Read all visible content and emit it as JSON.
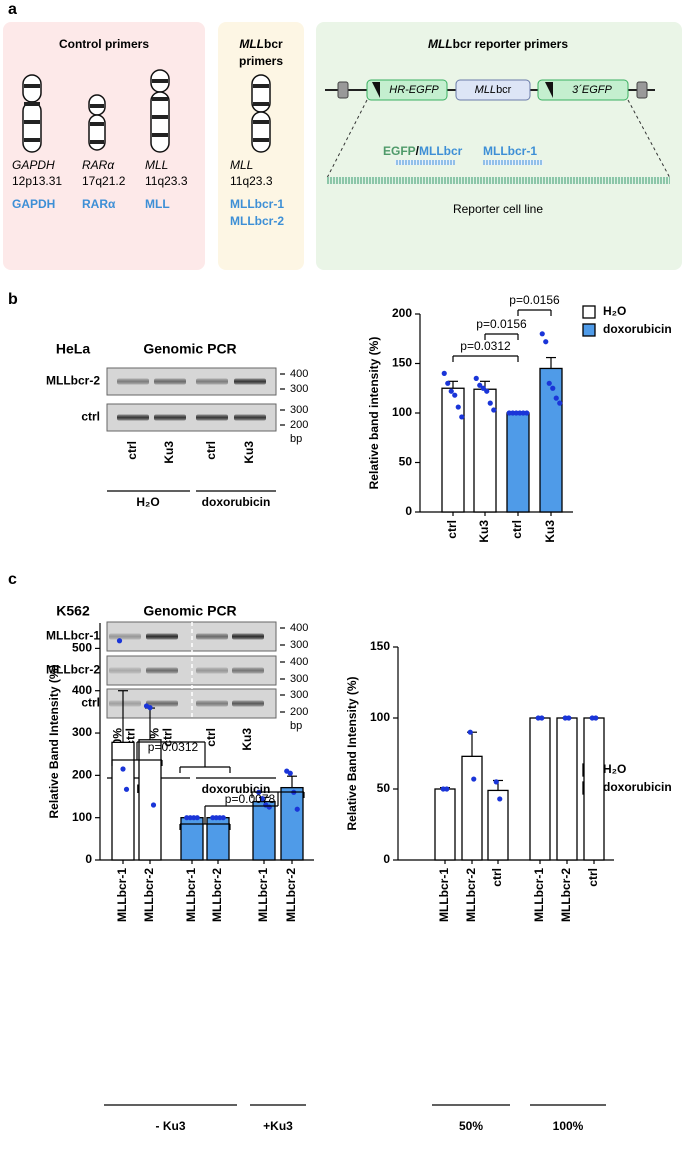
{
  "panel_a": {
    "label": "a",
    "control": {
      "title": "Control primers",
      "genes": [
        {
          "gene": "GAPDH",
          "locus": "12p13.31",
          "primer": "GAPDH"
        },
        {
          "gene": "RARα",
          "locus": "17q21.2",
          "primer": "RARα"
        },
        {
          "gene": "MLL",
          "locus": "11q23.3",
          "primer": "MLL"
        }
      ]
    },
    "mllbcr": {
      "title_italic": "MLL",
      "title_rest": "bcr",
      "title_line2": "primers",
      "gene": "MLL",
      "locus": "11q23.3",
      "primers": [
        "MLLbcr-1",
        "MLLbcr-2"
      ]
    },
    "reporter": {
      "title_italic": "MLL",
      "title_rest": "bcr reporter primers",
      "hr_egfp": "HR-EGFP",
      "mll_italic": "MLL",
      "mll_rest": "bcr",
      "egfp3": "3´EGFP",
      "primer_egfp": "EGFP",
      "primer_slash": "/",
      "primer_mllbcr": "MLLbcr",
      "primer_2": "MLLbcr-1",
      "cell_line": "Reporter cell line"
    }
  },
  "panel_b": {
    "label": "b",
    "cell": "HeLa",
    "method": "Genomic PCR",
    "rows": [
      "MLLbcr-2",
      "ctrl"
    ],
    "size_marks": [
      [
        400,
        300
      ],
      [
        300,
        200
      ]
    ],
    "unit": "bp",
    "lanes": [
      [
        "ctrl"
      ],
      [
        "Ku3"
      ],
      [
        "ctrl"
      ],
      [
        "Ku3"
      ]
    ],
    "treatments": [
      "H₂O",
      "doxorubicin"
    ]
  },
  "panel_c": {
    "label": "c",
    "cell": "K562",
    "method": "Genomic PCR",
    "rows": [
      "MLLbcr-1",
      "MLLbcr-2",
      "ctrl"
    ],
    "size_marks": [
      [
        400,
        300
      ],
      [
        400,
        300
      ],
      [
        300,
        200
      ]
    ],
    "unit": "bp",
    "lanes": [
      [
        "50%",
        "ctrl"
      ],
      [
        "100%",
        "ctrl"
      ],
      [
        "ctrl"
      ],
      [
        "Ku3"
      ]
    ],
    "treatments": [
      "H₂O",
      "doxorubicin"
    ]
  },
  "chart_data": [
    {
      "type": "bar",
      "ylabel": "Relative band intensity (%)",
      "categories": [
        "ctrl",
        "Ku3",
        "ctrl",
        "Ku3"
      ],
      "ylim": [
        0,
        200
      ],
      "yticks": [
        0,
        50,
        100,
        150,
        200
      ],
      "series": [
        {
          "name": "H₂O",
          "color": "#ffffff",
          "values": [
            125,
            124,
            null,
            null
          ],
          "errors": [
            7,
            8,
            null,
            null
          ],
          "points": [
            [
              140,
              130,
              122,
              118,
              106,
              96
            ],
            [
              135,
              128,
              125,
              122,
              110,
              103
            ],
            null,
            null
          ]
        },
        {
          "name": "doxorubicin",
          "color": "#4f9be8",
          "values": [
            null,
            null,
            100,
            145
          ],
          "errors": [
            null,
            null,
            0,
            11
          ],
          "points": [
            null,
            null,
            [
              100,
              100,
              100,
              100,
              100,
              100
            ],
            [
              180,
              172,
              130,
              125,
              115,
              110
            ]
          ]
        }
      ],
      "annotations": [
        "p=0.0312",
        "p=0.0156",
        "p=0.0156"
      ]
    },
    {
      "type": "bar",
      "ylabel": "Relative Band Intensity (%)",
      "categories": [
        "MLLbcr-1",
        "MLLbcr-2",
        "MLLbcr-1",
        "MLLbcr-2",
        "MLLbcr-1",
        "MLLbcr-2"
      ],
      "group_labels": [
        "- Ku3",
        "+Ku3"
      ],
      "ylim": [
        0,
        560
      ],
      "yticks": [
        0,
        100,
        200,
        300,
        400,
        500
      ],
      "series": [
        {
          "name": "H₂O",
          "color": "#ffffff",
          "values": [
            278,
            284,
            null,
            null,
            null,
            null
          ],
          "errors": [
            122,
            75,
            null,
            null,
            null,
            null
          ],
          "points": [
            [
              518,
              215,
              167
            ],
            [
              364,
              360,
              130
            ],
            null,
            null,
            null,
            null
          ]
        },
        {
          "name": "doxorubicin",
          "color": "#4f9be8",
          "values": [
            null,
            null,
            100,
            100,
            138,
            171
          ],
          "errors": [
            null,
            null,
            0,
            0,
            10,
            27
          ],
          "points": [
            null,
            null,
            [
              100,
              100,
              100,
              100
            ],
            [
              100,
              100,
              100,
              100
            ],
            [
              160,
              145,
              130,
              125
            ],
            [
              210,
              205,
              160,
              120
            ]
          ]
        }
      ],
      "annotations": [
        "p=0.0312",
        "p=0.0078"
      ]
    },
    {
      "type": "bar",
      "ylabel": "Relative Band Intensity (%)",
      "categories": [
        "MLLbcr-1",
        "MLLbcr-2",
        "ctrl",
        "MLLbcr-1",
        "MLLbcr-2",
        "ctrl"
      ],
      "group_labels": [
        "50%",
        "100%"
      ],
      "ylim": [
        0,
        150
      ],
      "yticks": [
        0,
        50,
        100,
        150
      ],
      "series": [
        {
          "color": "#ffffff",
          "values": [
            50,
            73,
            49,
            100,
            100,
            100
          ],
          "errors": [
            1,
            17,
            7,
            0,
            0,
            0
          ],
          "points": [
            [
              50,
              50
            ],
            [
              90,
              57
            ],
            [
              55,
              43
            ],
            [
              100,
              100
            ],
            [
              100,
              100
            ],
            [
              100,
              100
            ]
          ]
        }
      ]
    }
  ]
}
